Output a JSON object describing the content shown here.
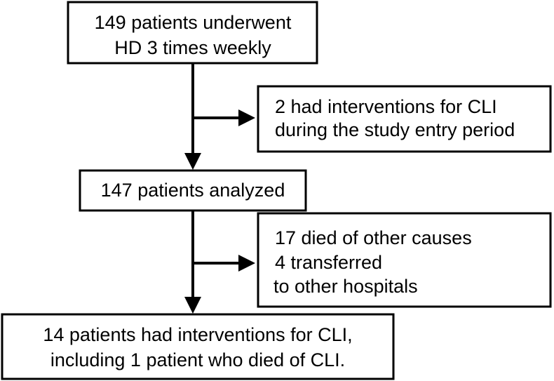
{
  "nodes": [
    {
      "lines": [
        "149 patients underwent",
        "HD 3 times weekly"
      ]
    },
    {
      "lines": [
        "2 had interventions for CLI",
        "during the study entry period"
      ]
    },
    {
      "lines": [
        "147 patients analyzed"
      ]
    },
    {
      "lines": [
        "17 died of other causes",
        "4 transferred",
        "to other hospitals"
      ]
    },
    {
      "lines": [
        "14 patients had interventions for CLI,",
        "including 1 patient who died of CLI."
      ]
    }
  ]
}
